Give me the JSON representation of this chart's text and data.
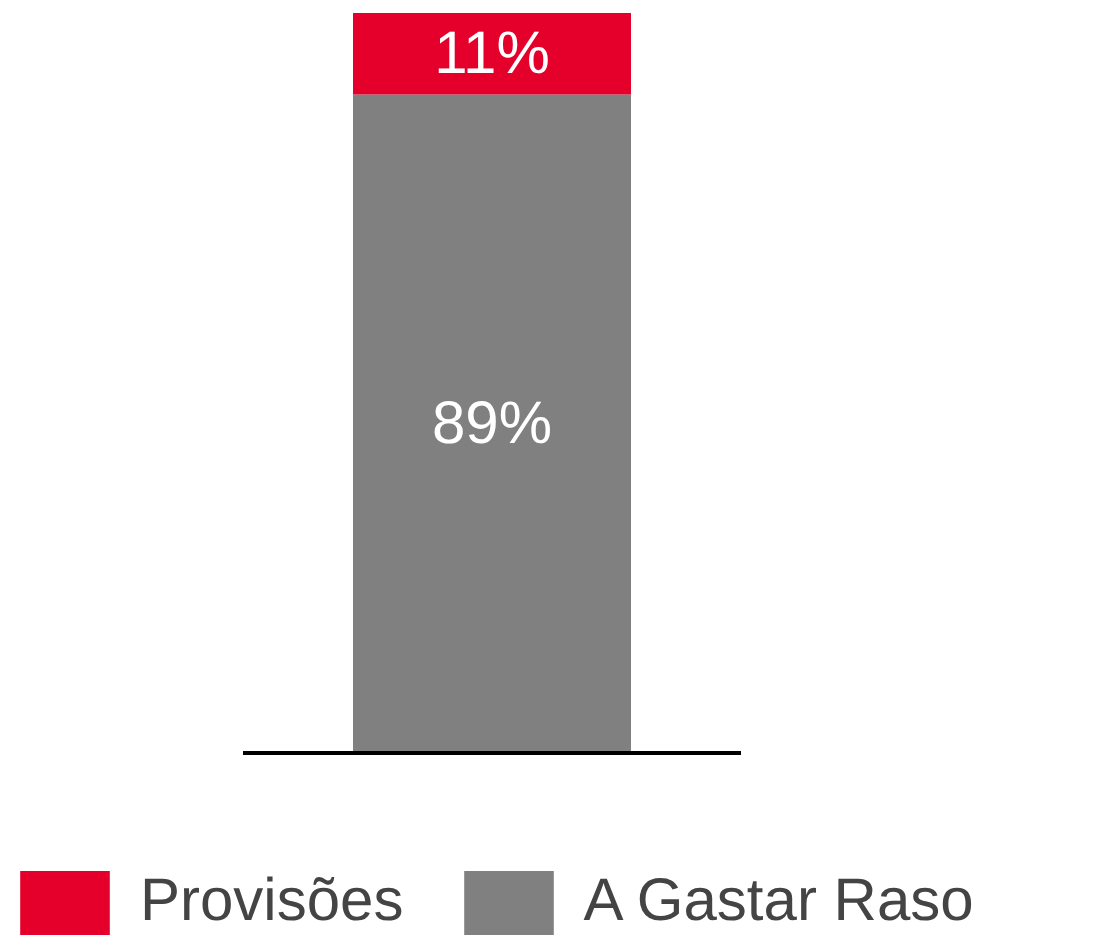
{
  "chart_data": {
    "type": "bar",
    "stacked": true,
    "categories": [
      null
    ],
    "series": [
      {
        "name": "A Gastar Raso",
        "color": "#808080",
        "values": [
          89
        ],
        "value_labels": [
          "89%"
        ]
      },
      {
        "name": "Provisões",
        "color": "#e4002b",
        "values": [
          11
        ],
        "value_labels": [
          "11%"
        ]
      }
    ],
    "legend": "bottom"
  }
}
